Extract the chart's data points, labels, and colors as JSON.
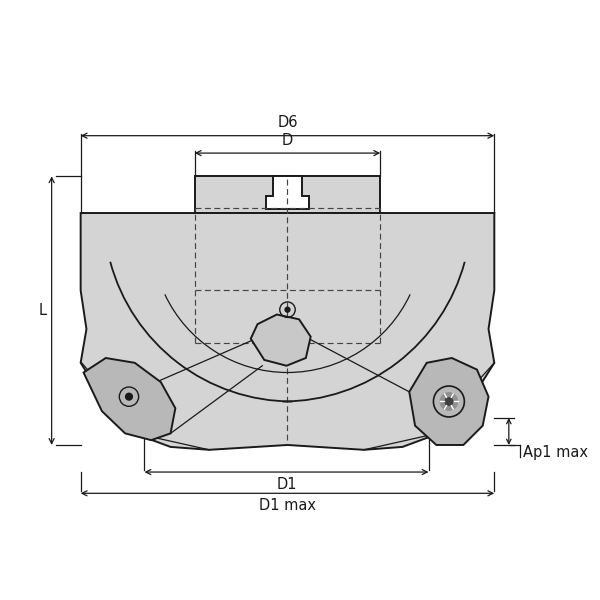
{
  "bg_color": "#ffffff",
  "line_color": "#1a1a1a",
  "fill_color": "#d4d4d4",
  "fill_light": "#e0e0e0",
  "fill_dark": "#b8b8b8",
  "dashed_color": "#444444",
  "fig_size": [
    6.0,
    6.0
  ],
  "dpi": 100,
  "labels": {
    "D6": "D6",
    "D": "D",
    "D1": "D1",
    "D1max": "D1 max",
    "L": "L",
    "Ap1max": "Ap1 max"
  },
  "font_size": 10.5,
  "lw_body": 1.4,
  "lw_dim": 0.9,
  "lw_dash": 0.85
}
